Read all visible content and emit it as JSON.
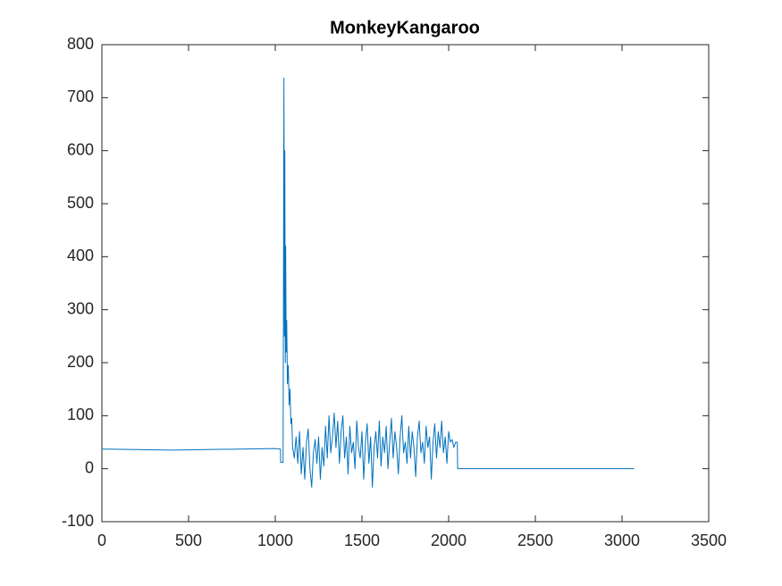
{
  "chart_data": {
    "type": "line",
    "title": "MonkeyKangaroo",
    "x": [
      0,
      200,
      400,
      600,
      800,
      1000,
      1030,
      1031,
      1045,
      1046,
      1050,
      1053,
      1055,
      1058,
      1060,
      1063,
      1066,
      1070,
      1075,
      1080,
      1085,
      1090,
      1095,
      1100,
      1110,
      1120,
      1130,
      1140,
      1150,
      1160,
      1170,
      1180,
      1190,
      1200,
      1210,
      1220,
      1230,
      1240,
      1250,
      1260,
      1270,
      1280,
      1290,
      1300,
      1310,
      1320,
      1330,
      1340,
      1350,
      1360,
      1370,
      1380,
      1390,
      1400,
      1410,
      1420,
      1430,
      1440,
      1450,
      1460,
      1470,
      1480,
      1490,
      1500,
      1510,
      1520,
      1530,
      1540,
      1550,
      1560,
      1570,
      1580,
      1590,
      1600,
      1610,
      1620,
      1630,
      1640,
      1650,
      1660,
      1670,
      1680,
      1690,
      1700,
      1710,
      1720,
      1730,
      1740,
      1750,
      1760,
      1770,
      1780,
      1790,
      1800,
      1810,
      1820,
      1830,
      1840,
      1850,
      1860,
      1870,
      1880,
      1890,
      1900,
      1910,
      1920,
      1930,
      1940,
      1950,
      1960,
      1970,
      1980,
      1990,
      2000,
      2010,
      2020,
      2030,
      2040,
      2050,
      2052,
      3070
    ],
    "values": [
      37,
      36,
      35,
      36,
      37,
      38,
      37,
      12,
      12,
      130,
      737,
      250,
      600,
      200,
      420,
      220,
      280,
      160,
      195,
      120,
      150,
      85,
      95,
      40,
      20,
      60,
      10,
      70,
      -10,
      40,
      -20,
      50,
      75,
      0,
      -35,
      30,
      55,
      10,
      60,
      -20,
      40,
      5,
      80,
      20,
      100,
      30,
      60,
      105,
      40,
      90,
      10,
      70,
      100,
      20,
      60,
      -10,
      80,
      30,
      50,
      0,
      90,
      40,
      20,
      70,
      -20,
      50,
      85,
      10,
      60,
      -35,
      40,
      70,
      20,
      90,
      5,
      60,
      30,
      80,
      0,
      50,
      95,
      20,
      70,
      40,
      -10,
      60,
      100,
      30,
      50,
      10,
      80,
      20,
      70,
      40,
      -15,
      60,
      90,
      30,
      50,
      10,
      80,
      40,
      60,
      -20,
      50,
      85,
      20,
      70,
      40,
      90,
      30,
      60,
      10,
      70,
      50,
      55,
      40,
      50,
      50,
      0,
      0
    ],
    "color": "#0072bd",
    "xlim": [
      0,
      3500
    ],
    "xticks": [
      0,
      500,
      1000,
      1500,
      2000,
      2500,
      3000,
      3500
    ],
    "ylim": [
      -100,
      800
    ],
    "yticks": [
      -100,
      0,
      100,
      200,
      300,
      400,
      500,
      600,
      700,
      800
    ],
    "grid": false
  }
}
